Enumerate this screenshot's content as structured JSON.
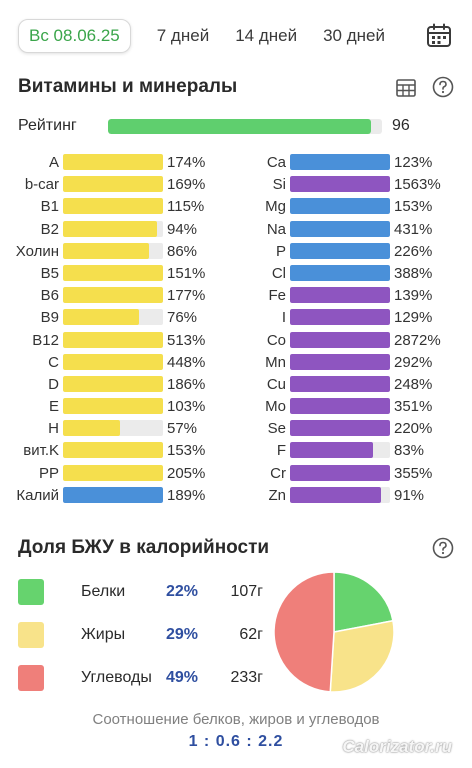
{
  "tabs": [
    {
      "label": "Вс 08.06.25",
      "active": true
    },
    {
      "label": "7 дней",
      "active": false
    },
    {
      "label": "14 дней",
      "active": false
    },
    {
      "label": "30 дней",
      "active": false
    }
  ],
  "vitamins": {
    "title": "Витамины и минералы",
    "rating_label": "Рейтинг",
    "rating_value": "96",
    "rating_fraction": 0.96,
    "left": [
      {
        "label": "A",
        "pct": "174%",
        "fill": 1.0,
        "color": "#f5df4d"
      },
      {
        "label": "b-car",
        "pct": "169%",
        "fill": 1.0,
        "color": "#f5df4d"
      },
      {
        "label": "B1",
        "pct": "115%",
        "fill": 1.0,
        "color": "#f5df4d"
      },
      {
        "label": "B2",
        "pct": "94%",
        "fill": 0.94,
        "color": "#f5df4d"
      },
      {
        "label": "Холин",
        "pct": "86%",
        "fill": 0.86,
        "color": "#f5df4d"
      },
      {
        "label": "B5",
        "pct": "151%",
        "fill": 1.0,
        "color": "#f5df4d"
      },
      {
        "label": "B6",
        "pct": "177%",
        "fill": 1.0,
        "color": "#f5df4d"
      },
      {
        "label": "B9",
        "pct": "76%",
        "fill": 0.76,
        "color": "#f5df4d"
      },
      {
        "label": "B12",
        "pct": "513%",
        "fill": 1.0,
        "color": "#f5df4d"
      },
      {
        "label": "C",
        "pct": "448%",
        "fill": 1.0,
        "color": "#f5df4d"
      },
      {
        "label": "D",
        "pct": "186%",
        "fill": 1.0,
        "color": "#f5df4d"
      },
      {
        "label": "E",
        "pct": "103%",
        "fill": 1.0,
        "color": "#f5df4d"
      },
      {
        "label": "H",
        "pct": "57%",
        "fill": 0.57,
        "color": "#f5df4d"
      },
      {
        "label": "вит.K",
        "pct": "153%",
        "fill": 1.0,
        "color": "#f5df4d"
      },
      {
        "label": "PP",
        "pct": "205%",
        "fill": 1.0,
        "color": "#f5df4d"
      },
      {
        "label": "Калий",
        "pct": "189%",
        "fill": 1.0,
        "color": "#4a90d9"
      }
    ],
    "right": [
      {
        "label": "Ca",
        "pct": "123%",
        "fill": 1.0,
        "color": "#4a90d9"
      },
      {
        "label": "Si",
        "pct": "1563%",
        "fill": 1.0,
        "color": "#8e55c0"
      },
      {
        "label": "Mg",
        "pct": "153%",
        "fill": 1.0,
        "color": "#4a90d9"
      },
      {
        "label": "Na",
        "pct": "431%",
        "fill": 1.0,
        "color": "#4a90d9"
      },
      {
        "label": "P",
        "pct": "226%",
        "fill": 1.0,
        "color": "#4a90d9"
      },
      {
        "label": "Cl",
        "pct": "388%",
        "fill": 1.0,
        "color": "#4a90d9"
      },
      {
        "label": "Fe",
        "pct": "139%",
        "fill": 1.0,
        "color": "#8e55c0"
      },
      {
        "label": "I",
        "pct": "129%",
        "fill": 1.0,
        "color": "#8e55c0"
      },
      {
        "label": "Co",
        "pct": "2872%",
        "fill": 1.0,
        "color": "#8e55c0"
      },
      {
        "label": "Mn",
        "pct": "292%",
        "fill": 1.0,
        "color": "#8e55c0"
      },
      {
        "label": "Cu",
        "pct": "248%",
        "fill": 1.0,
        "color": "#8e55c0"
      },
      {
        "label": "Mo",
        "pct": "351%",
        "fill": 1.0,
        "color": "#8e55c0"
      },
      {
        "label": "Se",
        "pct": "220%",
        "fill": 1.0,
        "color": "#8e55c0"
      },
      {
        "label": "F",
        "pct": "83%",
        "fill": 0.83,
        "color": "#8e55c0"
      },
      {
        "label": "Cr",
        "pct": "355%",
        "fill": 1.0,
        "color": "#8e55c0"
      },
      {
        "label": "Zn",
        "pct": "91%",
        "fill": 0.91,
        "color": "#8e55c0"
      }
    ]
  },
  "macros": {
    "title": "Доля БЖУ в калорийности",
    "items": [
      {
        "name": "Белки",
        "pct": "22%",
        "grams": "107г",
        "share": 22,
        "color": "#66d36e"
      },
      {
        "name": "Жиры",
        "pct": "29%",
        "grams": "62г",
        "share": 29,
        "color": "#f8e38a"
      },
      {
        "name": "Углеводы",
        "pct": "49%",
        "grams": "233г",
        "share": 49,
        "color": "#ef7f7a"
      }
    ],
    "ratio_caption": "Соотношение белков, жиров и углеводов",
    "ratio_value": "1 : 0.6 : 2.2"
  },
  "watermark": "Calorizator.ru",
  "icons": {
    "calendar": "calendar-icon",
    "table": "table-icon",
    "help": "help-icon"
  }
}
